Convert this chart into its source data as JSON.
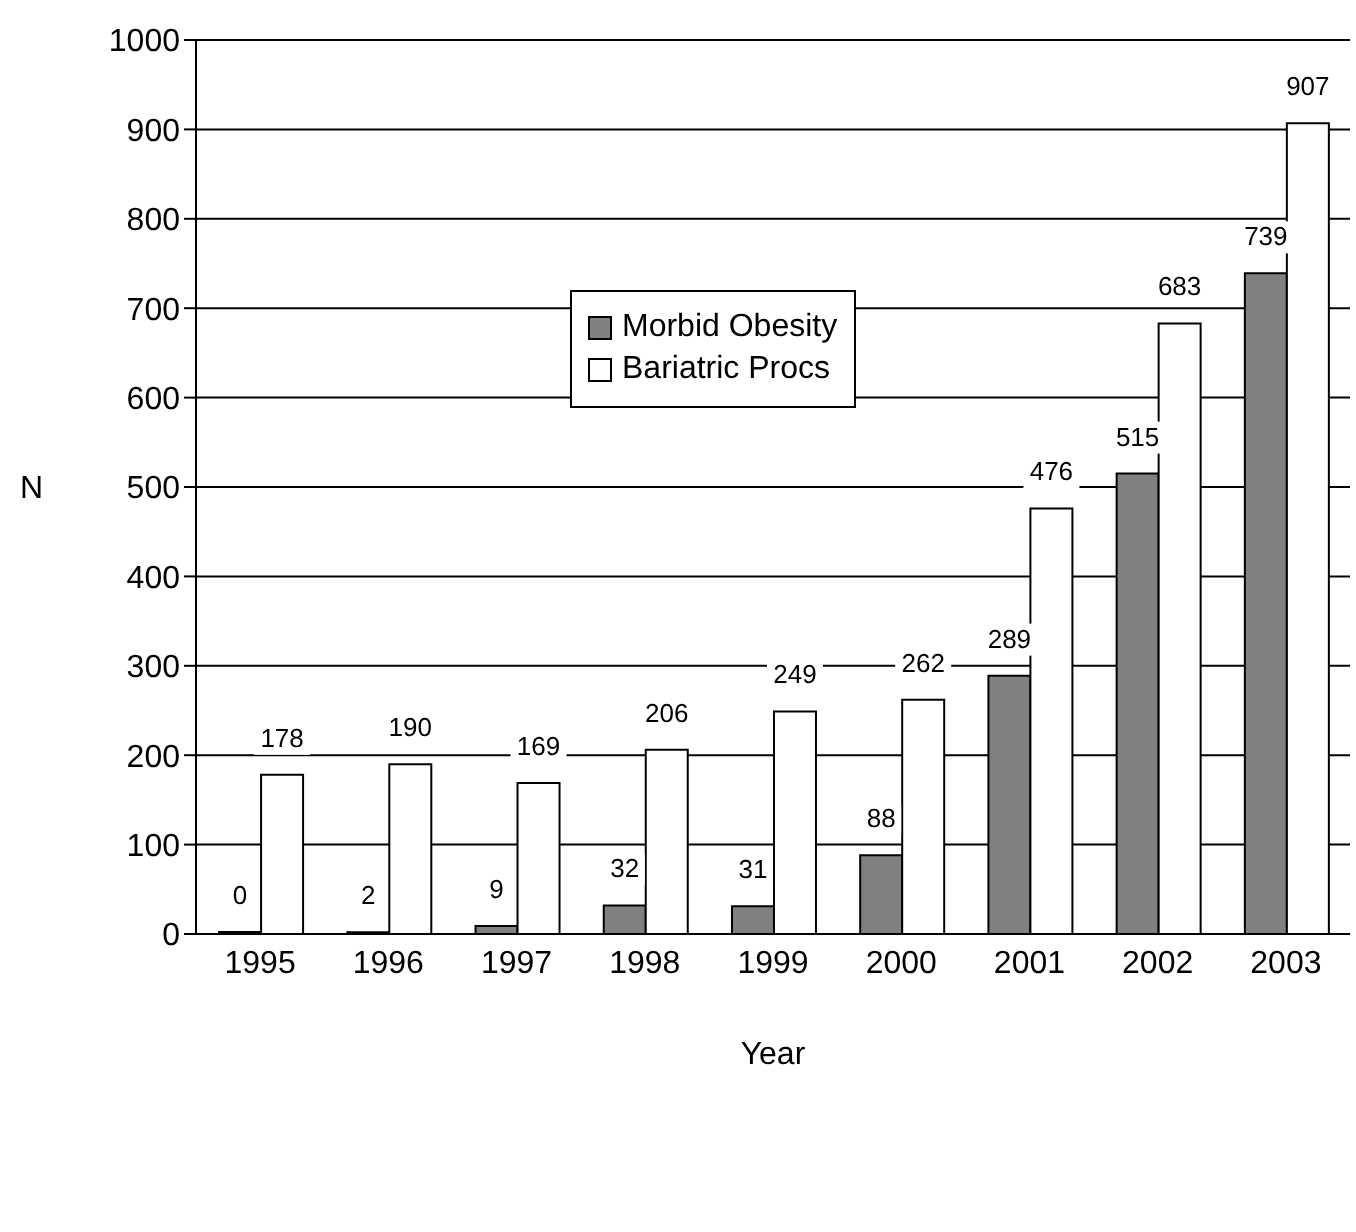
{
  "chart_data": {
    "type": "bar",
    "xlabel": "Year",
    "ylabel": "N",
    "categories": [
      "1995",
      "1996",
      "1997",
      "1998",
      "1999",
      "2000",
      "2001",
      "2002",
      "2003"
    ],
    "series": [
      {
        "name": "Morbid Obesity",
        "color": "#808080",
        "values": [
          0,
          2,
          9,
          32,
          31,
          88,
          289,
          515,
          739
        ]
      },
      {
        "name": "Bariatric Procs",
        "color": "#ffffff",
        "values": [
          178,
          190,
          169,
          206,
          249,
          262,
          476,
          683,
          907
        ]
      }
    ],
    "ylim": [
      0,
      1000
    ],
    "yticks": [
      0,
      100,
      200,
      300,
      400,
      500,
      600,
      700,
      800,
      900,
      1000
    ],
    "grid": "y",
    "legend": "top",
    "data_labels": true
  }
}
